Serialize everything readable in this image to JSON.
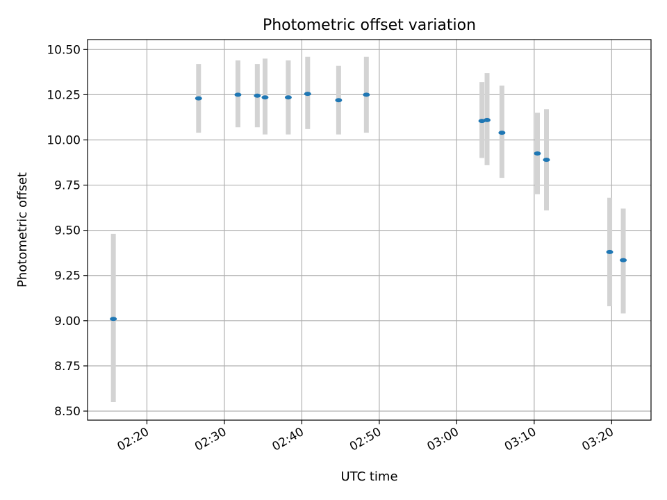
{
  "chart_data": {
    "type": "scatter",
    "title": "Photometric offset variation",
    "xlabel": "UTC time",
    "ylabel": "Photometric offset",
    "grid": true,
    "ylim": [
      8.45,
      10.555
    ],
    "xlim": [
      "02:12:20",
      "03:25:05"
    ],
    "x_ticks": [
      "02:20",
      "02:30",
      "02:40",
      "02:50",
      "03:00",
      "03:10",
      "03:20"
    ],
    "y_ticks": [
      "8.50",
      "8.75",
      "9.00",
      "9.25",
      "9.50",
      "9.75",
      "10.00",
      "10.25",
      "10.50"
    ],
    "colors": {
      "point": "#1f77b4",
      "errorbar": "#d3d3d3",
      "grid": "#b0b0b0"
    },
    "series": [
      {
        "points": [
          {
            "x": "02:15:40",
            "y": 9.01,
            "ylo": 8.55,
            "yhi": 9.48
          },
          {
            "x": "02:26:40",
            "y": 10.23,
            "ylo": 10.04,
            "yhi": 10.42
          },
          {
            "x": "02:31:45",
            "y": 10.25,
            "ylo": 10.07,
            "yhi": 10.44
          },
          {
            "x": "02:34:15",
            "y": 10.245,
            "ylo": 10.07,
            "yhi": 10.42
          },
          {
            "x": "02:35:15",
            "y": 10.235,
            "ylo": 10.03,
            "yhi": 10.45
          },
          {
            "x": "02:38:15",
            "y": 10.235,
            "ylo": 10.03,
            "yhi": 10.44
          },
          {
            "x": "02:40:45",
            "y": 10.255,
            "ylo": 10.06,
            "yhi": 10.46
          },
          {
            "x": "02:44:45",
            "y": 10.22,
            "ylo": 10.03,
            "yhi": 10.41
          },
          {
            "x": "02:48:20",
            "y": 10.25,
            "ylo": 10.04,
            "yhi": 10.46
          },
          {
            "x": "03:03:15",
            "y": 10.105,
            "ylo": 9.9,
            "yhi": 10.32
          },
          {
            "x": "03:03:55",
            "y": 10.11,
            "ylo": 9.86,
            "yhi": 10.37
          },
          {
            "x": "03:05:50",
            "y": 10.04,
            "ylo": 9.79,
            "yhi": 10.3
          },
          {
            "x": "03:10:25",
            "y": 9.925,
            "ylo": 9.7,
            "yhi": 10.15
          },
          {
            "x": "03:11:35",
            "y": 9.89,
            "ylo": 9.61,
            "yhi": 10.17
          },
          {
            "x": "03:19:45",
            "y": 9.38,
            "ylo": 9.08,
            "yhi": 9.68
          },
          {
            "x": "03:21:30",
            "y": 9.335,
            "ylo": 9.04,
            "yhi": 9.62
          }
        ]
      }
    ]
  }
}
